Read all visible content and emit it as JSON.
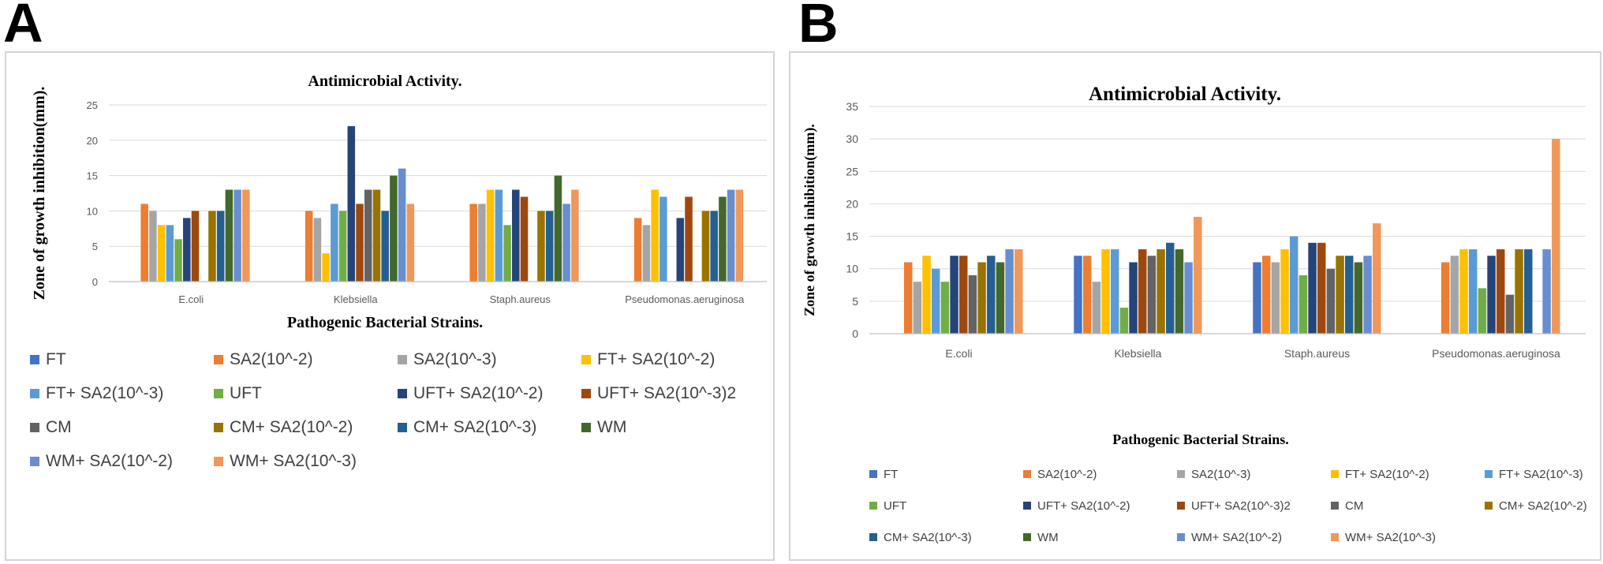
{
  "panels": [
    {
      "letter": "A",
      "chart_data": {
        "type": "bar",
        "title": "Antimicrobial Activity.",
        "xlabel": "Pathogenic Bacterial Strains.",
        "ylabel": "Zone of growth inhibition(mm).",
        "ylim": [
          0,
          25
        ],
        "yticks": [
          0,
          5,
          10,
          15,
          20,
          25
        ],
        "grid": true,
        "legend_position": "bottom",
        "categories": [
          "E.coli",
          "Klebsiella",
          "Staph.aureus",
          "Pseudomonas.aeruginosa"
        ],
        "series": [
          {
            "name": "FT",
            "color": "#4472C4",
            "values": [
              0,
              0,
              0,
              0
            ]
          },
          {
            "name": "SA2(10^-2)",
            "color": "#ED7D31",
            "values": [
              11,
              10,
              11,
              9
            ]
          },
          {
            "name": "SA2(10^-3)",
            "color": "#A5A5A5",
            "values": [
              10,
              9,
              11,
              8
            ]
          },
          {
            "name": "FT+ SA2(10^-2)",
            "color": "#FFC000",
            "values": [
              8,
              4,
              13,
              13
            ]
          },
          {
            "name": "FT+ SA2(10^-3)",
            "color": "#5B9BD5",
            "values": [
              8,
              11,
              13,
              12
            ]
          },
          {
            "name": "UFT",
            "color": "#70AD47",
            "values": [
              6,
              10,
              8,
              0
            ]
          },
          {
            "name": "UFT+ SA2(10^-2)",
            "color": "#264478",
            "values": [
              9,
              22,
              13,
              9
            ]
          },
          {
            "name": "UFT+ SA2(10^-3)2",
            "color": "#9E480E",
            "values": [
              10,
              11,
              12,
              12
            ]
          },
          {
            "name": "CM",
            "color": "#636363",
            "values": [
              0,
              13,
              0,
              0
            ]
          },
          {
            "name": "CM+ SA2(10^-2)",
            "color": "#997300",
            "values": [
              10,
              13,
              10,
              10
            ]
          },
          {
            "name": "CM+ SA2(10^-3)",
            "color": "#255E91",
            "values": [
              10,
              10,
              10,
              10
            ]
          },
          {
            "name": "WM",
            "color": "#43682B",
            "values": [
              13,
              15,
              15,
              12
            ]
          },
          {
            "name": "WM+ SA2(10^-2)",
            "color": "#698ED0",
            "values": [
              13,
              16,
              11,
              13
            ]
          },
          {
            "name": "WM+ SA2(10^-3)",
            "color": "#F1975A",
            "values": [
              13,
              11,
              13,
              13
            ]
          }
        ]
      }
    },
    {
      "letter": "B",
      "chart_data": {
        "type": "bar",
        "title": "Antimicrobial  Activity.",
        "xlabel": "Pathogenic Bacterial Strains.",
        "ylabel": "Zone of growth inhibition(mm).",
        "ylim": [
          0,
          35
        ],
        "yticks": [
          0,
          5,
          10,
          15,
          20,
          25,
          30,
          35
        ],
        "grid": true,
        "legend_position": "bottom",
        "categories": [
          "E.coli",
          "Klebsiella",
          "Staph.aureus",
          "Pseudomonas.aeruginosa"
        ],
        "series": [
          {
            "name": "FT",
            "color": "#4472C4",
            "values": [
              0,
              12,
              11,
              0
            ]
          },
          {
            "name": "SA2(10^-2)",
            "color": "#ED7D31",
            "values": [
              11,
              12,
              12,
              11
            ]
          },
          {
            "name": "SA2(10^-3)",
            "color": "#A5A5A5",
            "values": [
              8,
              8,
              11,
              12
            ]
          },
          {
            "name": "FT+ SA2(10^-2)",
            "color": "#FFC000",
            "values": [
              12,
              13,
              13,
              13
            ]
          },
          {
            "name": "FT+ SA2(10^-3)",
            "color": "#5B9BD5",
            "values": [
              10,
              13,
              15,
              13
            ]
          },
          {
            "name": "UFT",
            "color": "#70AD47",
            "values": [
              8,
              4,
              9,
              7
            ]
          },
          {
            "name": "UFT+ SA2(10^-2)",
            "color": "#264478",
            "values": [
              12,
              11,
              14,
              12
            ]
          },
          {
            "name": "UFT+ SA2(10^-3)2",
            "color": "#9E480E",
            "values": [
              12,
              13,
              14,
              13
            ]
          },
          {
            "name": "CM",
            "color": "#636363",
            "values": [
              9,
              12,
              10,
              6
            ]
          },
          {
            "name": "CM+ SA2(10^-2)",
            "color": "#997300",
            "values": [
              11,
              13,
              12,
              13
            ]
          },
          {
            "name": "CM+ SA2(10^-3)",
            "color": "#255E91",
            "values": [
              12,
              14,
              12,
              13
            ]
          },
          {
            "name": "WM",
            "color": "#43682B",
            "values": [
              11,
              13,
              11,
              0
            ]
          },
          {
            "name": "WM+ SA2(10^-2)",
            "color": "#698ED0",
            "values": [
              13,
              11,
              12,
              13
            ]
          },
          {
            "name": "WM+ SA2(10^-3)",
            "color": "#F1975A",
            "values": [
              13,
              18,
              17,
              30
            ]
          }
        ]
      }
    }
  ]
}
